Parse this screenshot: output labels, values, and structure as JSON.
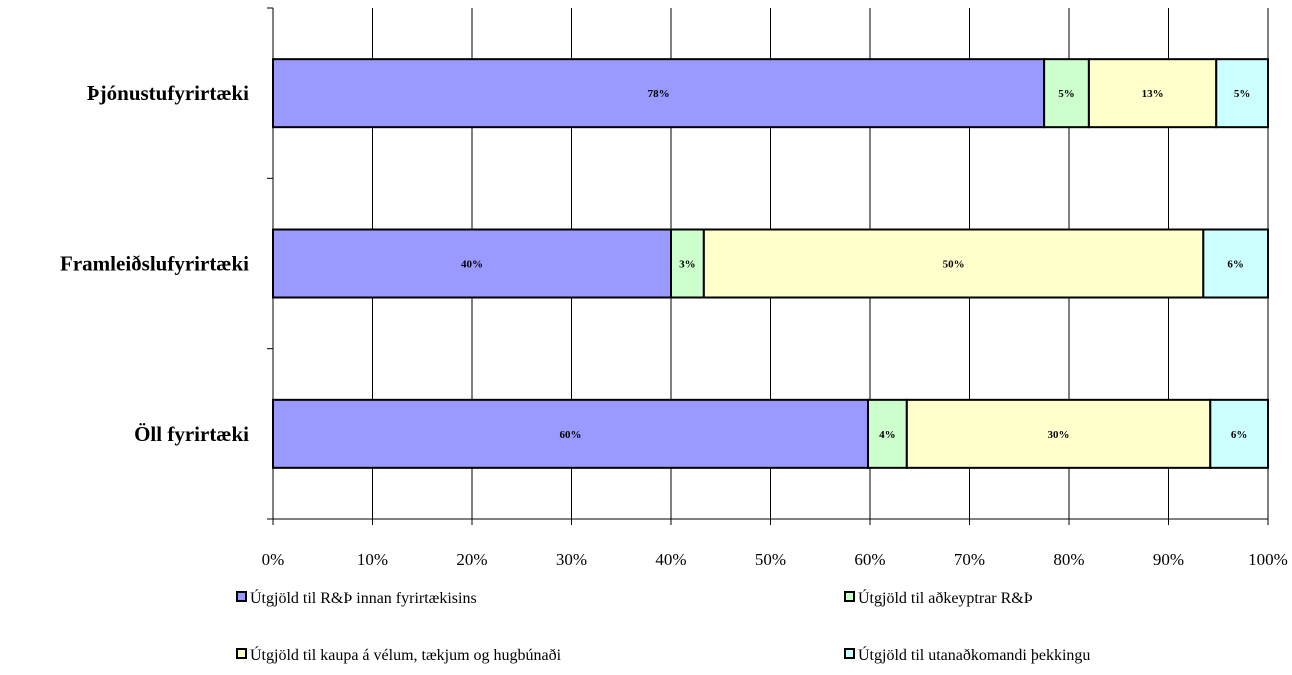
{
  "chart_data": {
    "type": "bar",
    "orientation": "horizontal",
    "stacked": true,
    "normalized": true,
    "categories": [
      "Þjónustufyrirtæki",
      "Framleiðslufyrirtæki",
      "Öll fyrirtæki"
    ],
    "series": [
      {
        "name": "Útgjöld til R&Þ innan fyrirtækisins",
        "color": "#9999ff",
        "values": [
          77.5,
          40.0,
          59.8
        ],
        "labels": [
          "78%",
          "40%",
          "60%"
        ]
      },
      {
        "name": "Útgjöld til aðkeyptrar R&Þ",
        "color": "#ccffcc",
        "values": [
          4.5,
          3.3,
          3.9
        ],
        "labels": [
          "5%",
          "3%",
          "4%"
        ]
      },
      {
        "name": "Útgjöld til kaupa á vélum, tækjum og hugbúnaði",
        "color": "#ffffcc",
        "values": [
          12.8,
          50.2,
          30.5
        ],
        "labels": [
          "13%",
          "50%",
          "30%"
        ]
      },
      {
        "name": "Útgjöld til utanaðkomandi þekkingu",
        "color": "#ccffff",
        "values": [
          5.2,
          6.5,
          5.8
        ],
        "labels": [
          "5%",
          "6%",
          "6%"
        ]
      }
    ],
    "x_ticks": [
      "0%",
      "10%",
      "20%",
      "30%",
      "40%",
      "50%",
      "60%",
      "70%",
      "80%",
      "90%",
      "100%"
    ],
    "xlim": [
      0,
      100
    ],
    "grid": true,
    "legend_position": "bottom",
    "title": "",
    "xlabel": "",
    "ylabel": ""
  }
}
